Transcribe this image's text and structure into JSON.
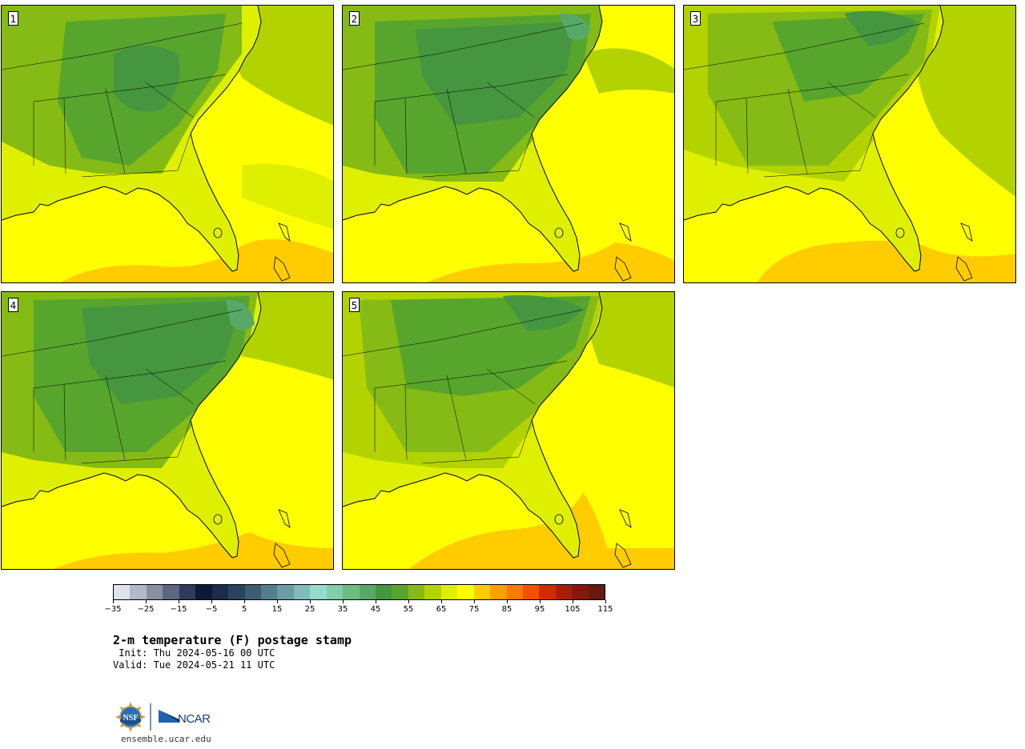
{
  "panels": [
    {
      "label": "1"
    },
    {
      "label": "2"
    },
    {
      "label": "3"
    },
    {
      "label": "4"
    },
    {
      "label": "5"
    }
  ],
  "colorbar": {
    "colors": [
      "#dfe3ea",
      "#b4b8c8",
      "#8a90a4",
      "#5e6680",
      "#2f3b5a",
      "#0d1a35",
      "#1b2b4a",
      "#2a445e",
      "#3d5e72",
      "#537f8c",
      "#6a9ea4",
      "#7fbcba",
      "#96dccd",
      "#7fd0a8",
      "#6cbc84",
      "#58a867",
      "#46963f",
      "#57a52d",
      "#85bb14",
      "#b3d300",
      "#def000",
      "#ffff00",
      "#ffcc00",
      "#ff9f00",
      "#ff7800",
      "#f45000",
      "#cf2d00",
      "#a81d04",
      "#85180a",
      "#651a10"
    ],
    "ticks": [
      "−35",
      "−25",
      "−15",
      "−5",
      "5",
      "15",
      "25",
      "35",
      "45",
      "55",
      "65",
      "75",
      "85",
      "95",
      "105",
      "115"
    ]
  },
  "title": "2-m temperature (F) postage stamp",
  "init": " Init: Thu 2024-05-16 00 UTC",
  "valid": "Valid: Tue 2024-05-21 11 UTC",
  "logo": {
    "nsf_text": "NSF",
    "ncar_text": "NCAR"
  },
  "url": "ensemble.ucar.edu"
}
